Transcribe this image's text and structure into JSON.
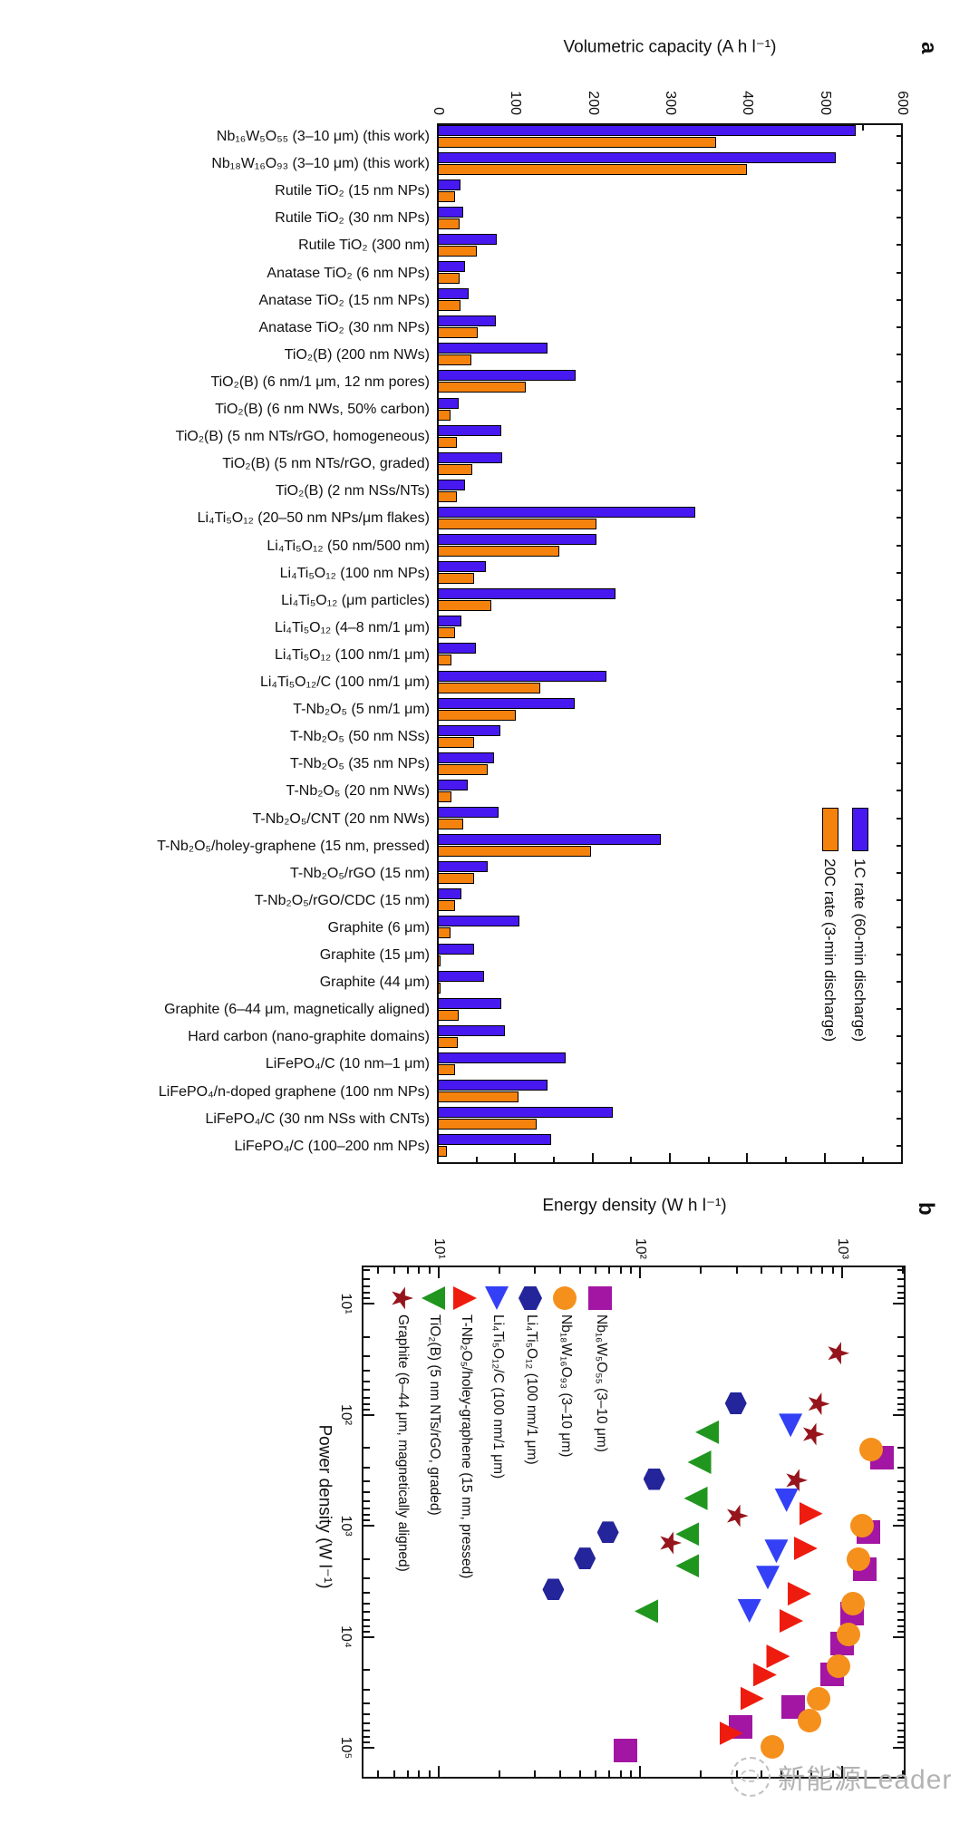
{
  "watermark": {
    "text": "新能源Leader",
    "color": "#b3b3b3"
  },
  "chart_data": [
    {
      "panel": "a",
      "type": "bar",
      "title": "Volumetric capacity (A h l⁻¹)",
      "ylabel": "Volumetric capacity (A h l⁻¹)",
      "ylim": [
        0,
        600
      ],
      "ytick_major": 100,
      "ytick_minor": 50,
      "ytick_labels": [
        "0",
        "100",
        "200",
        "300",
        "400",
        "500",
        "600"
      ],
      "grid": false,
      "legend_position": "upper-right-inside",
      "categories": [
        "Nb₁₆W₅O₅₅ (3–10 μm) (this work)",
        "Nb₁₈W₁₆O₉₃ (3–10 μm) (this work)",
        "Rutile TiO₂ (15 nm NPs)",
        "Rutile TiO₂ (30 nm NPs)",
        "Rutile TiO₂ (300 nm)",
        "Anatase TiO₂ (6 nm NPs)",
        "Anatase TiO₂ (15 nm NPs)",
        "Anatase TiO₂ (30 nm NPs)",
        "TiO₂(B) (200 nm NWs)",
        "TiO₂(B) (6 nm/1 μm, 12 nm pores)",
        "TiO₂(B) (6 nm NWs, 50% carbon)",
        "TiO₂(B) (5 nm NTs/rGO, homogeneous)",
        "TiO₂(B) (5 nm NTs/rGO, graded)",
        "TiO₂(B) (2 nm NSs/NTs)",
        "Li₄Ti₅O₁₂ (20–50 nm NPs/μm flakes)",
        "Li₄Ti₅O₁₂ (50 nm/500 nm)",
        "Li₄Ti₅O₁₂ (100 nm NPs)",
        "Li₄Ti₅O₁₂ (μm particles)",
        "Li₄Ti₅O₁₂ (4–8 nm/1 μm)",
        "Li₄Ti₅O₁₂ (100 nm/1 μm)",
        "Li₄Ti₅O₁₂/C (100 nm/1 μm)",
        "T-Nb₂O₅ (5 nm/1 μm)",
        "T-Nb₂O₅ (50 nm NSs)",
        "T-Nb₂O₅ (35 nm NPs)",
        "T-Nb₂O₅ (20 nm NWs)",
        "T-Nb₂O₅/CNT (20 nm NWs)",
        "T-Nb₂O₅/holey-graphene (15 nm, pressed)",
        "T-Nb₂O₅/rGO (15 nm)",
        "T-Nb₂O₅/rGO/CDC (15 nm)",
        "Graphite (6 μm)",
        "Graphite (15 μm)",
        "Graphite (44 μm)",
        "Graphite (6–44 μm, magnetically aligned)",
        "Hard carbon (nano-graphite domains)",
        "LiFePO₄/C (10 nm–1 μm)",
        "LiFePO₄/n-doped graphene (100 nm NPs)",
        "LiFePO₄/C (30 nm NSs with CNTs)",
        "LiFePO₄/C (100–200 nm NPs)"
      ],
      "series": [
        {
          "name": "1C rate (60-min discharge)",
          "color": "#4718F0",
          "values": [
            540,
            515,
            29,
            33,
            76,
            35,
            40,
            75,
            142,
            178,
            27,
            82,
            83,
            35,
            333,
            205,
            62,
            230,
            30,
            49,
            218,
            177,
            81,
            73,
            39,
            79,
            288,
            64,
            30,
            106,
            47,
            60,
            82,
            87,
            165,
            142,
            226,
            147
          ]
        },
        {
          "name": "20C rate (3-min discharge)",
          "color": "#F5820D",
          "values": [
            360,
            400,
            22,
            28,
            50,
            28,
            29,
            51,
            43,
            114,
            16,
            25,
            45,
            25,
            205,
            157,
            47,
            69,
            22,
            17,
            132,
            101,
            47,
            64,
            17,
            33,
            198,
            47,
            22,
            16,
            3,
            3,
            27,
            26,
            22,
            104,
            128,
            12
          ]
        }
      ]
    },
    {
      "panel": "b",
      "type": "scatter",
      "xlabel": "Power density (W l⁻¹)",
      "ylabel": "Energy density (W h l⁻¹)",
      "xscale": "log",
      "yscale": "log",
      "xlim": [
        4.6,
        186000
      ],
      "ylim": [
        4.1,
        2045
      ],
      "xtick_labels": [
        "10¹",
        "10²",
        "10³",
        "10⁴",
        "10⁵"
      ],
      "ytick_labels": [
        "10¹",
        "10²",
        "10³"
      ],
      "grid": false,
      "legend_position": "lower-left-inside",
      "series": [
        {
          "name": "Nb₁₆W₅O₅₅ (3–10 μm)",
          "marker": "square",
          "color": "#A315A3",
          "points": [
            [
              245,
              1570
            ],
            [
              1150,
              1350
            ],
            [
              2450,
              1290
            ],
            [
              6200,
              1120
            ],
            [
              11500,
              995
            ],
            [
              22000,
              890
            ],
            [
              43000,
              570
            ],
            [
              65000,
              313
            ],
            [
              105000,
              84
            ]
          ]
        },
        {
          "name": "Nb₁₈W₁₆O₉₃ (3–10 μm)",
          "marker": "circle",
          "color": "#F5901D",
          "points": [
            [
              205,
              1390
            ],
            [
              1000,
              1250
            ],
            [
              2000,
              1210
            ],
            [
              5000,
              1130
            ],
            [
              9600,
              1080
            ],
            [
              18400,
              960
            ],
            [
              36000,
              765
            ],
            [
              57000,
              690
            ],
            [
              98000,
              450
            ]
          ]
        },
        {
          "name": "Li₄Ti₅O₁₂ (100 nm/1 μm)",
          "marker": "hexagon",
          "color": "#24249B",
          "points": [
            [
              79,
              297
            ],
            [
              380,
              117
            ],
            [
              1150,
              69
            ],
            [
              1970,
              53
            ],
            [
              3760,
              37
            ]
          ]
        },
        {
          "name": "Li₄Ti₅O₁₂/C (100 nm/1 μm)",
          "marker": "triangle-right",
          "color": "#3340F5",
          "points": [
            [
              125,
              555
            ],
            [
              590,
              530
            ],
            [
              1700,
              472
            ],
            [
              2930,
              428
            ],
            [
              5850,
              347
            ]
          ]
        },
        {
          "name": "T-Nb₂O₅/holey-graphene (15 nm, pressed)",
          "marker": "triangle-up",
          "color": "#EE1C0F",
          "points": [
            [
              780,
              700
            ],
            [
              1600,
              660
            ],
            [
              4100,
              615
            ],
            [
              7200,
              560
            ],
            [
              15000,
              482
            ],
            [
              22000,
              414
            ],
            [
              36000,
              358
            ],
            [
              74000,
              282
            ]
          ]
        },
        {
          "name": "TiO₂(B) (5 nm NTs/rGO, graded)",
          "marker": "triangle-down",
          "color": "#21961F",
          "points": [
            [
              144,
              214
            ],
            [
              268,
              196
            ],
            [
              567,
              188
            ],
            [
              1190,
              171
            ],
            [
              2300,
              171
            ],
            [
              5900,
              107
            ]
          ]
        },
        {
          "name": "Graphite (6–44 μm, magnetically aligned)",
          "marker": "star",
          "color": "#96151C",
          "points": [
            [
              28,
              950
            ],
            [
              80,
              760
            ],
            [
              150,
              715
            ],
            [
              390,
              590
            ],
            [
              815,
              300
            ],
            [
              1430,
              140
            ]
          ]
        }
      ]
    }
  ]
}
